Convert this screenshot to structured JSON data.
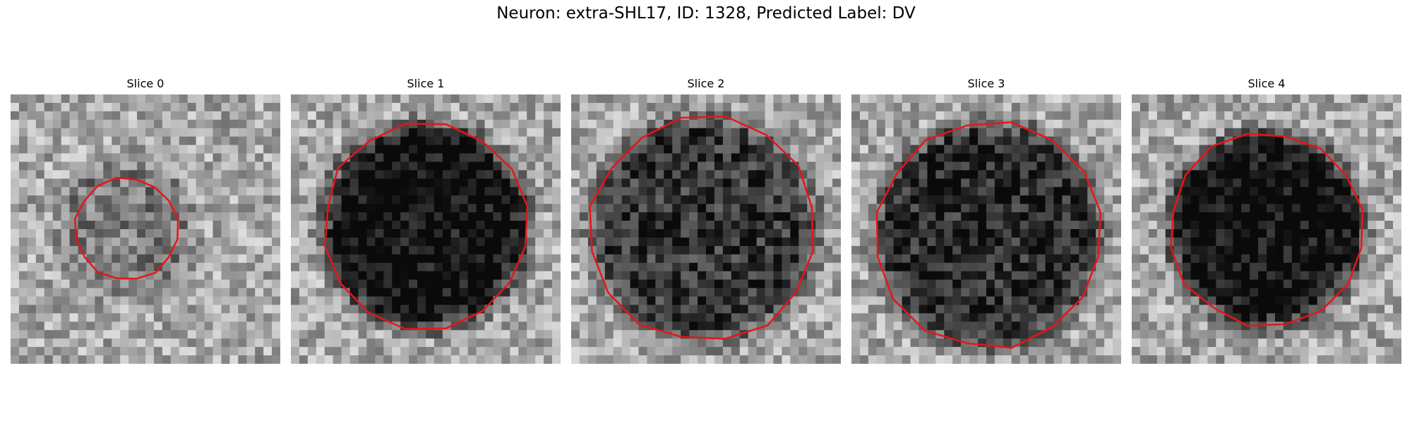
{
  "figure": {
    "title": "Neuron: extra-SHL17, ID: 1328, Predicted Label: DV"
  },
  "panels": [
    {
      "title": "Slice 0",
      "seed": 11,
      "blob_darkness": 0.18,
      "blob_radius": 0.26,
      "center": [
        0.43,
        0.5
      ],
      "contour_radius": 0.19,
      "contour_color": "#e8141a"
    },
    {
      "title": "Slice 1",
      "seed": 23,
      "blob_darkness": 0.62,
      "blob_radius": 0.38,
      "center": [
        0.5,
        0.49
      ],
      "contour_radius": 0.38,
      "contour_color": "#e8141a"
    },
    {
      "title": "Slice 2",
      "seed": 37,
      "blob_darkness": 0.45,
      "blob_radius": 0.42,
      "center": [
        0.49,
        0.5
      ],
      "contour_radius": 0.42,
      "contour_color": "#e8141a"
    },
    {
      "title": "Slice 3",
      "seed": 51,
      "blob_darkness": 0.5,
      "blob_radius": 0.42,
      "center": [
        0.51,
        0.52
      ],
      "contour_radius": 0.42,
      "contour_color": "#e8141a"
    },
    {
      "title": "Slice 4",
      "seed": 67,
      "blob_darkness": 0.62,
      "blob_radius": 0.36,
      "center": [
        0.5,
        0.5
      ],
      "contour_radius": 0.36,
      "contour_color": "#e8141a"
    }
  ]
}
